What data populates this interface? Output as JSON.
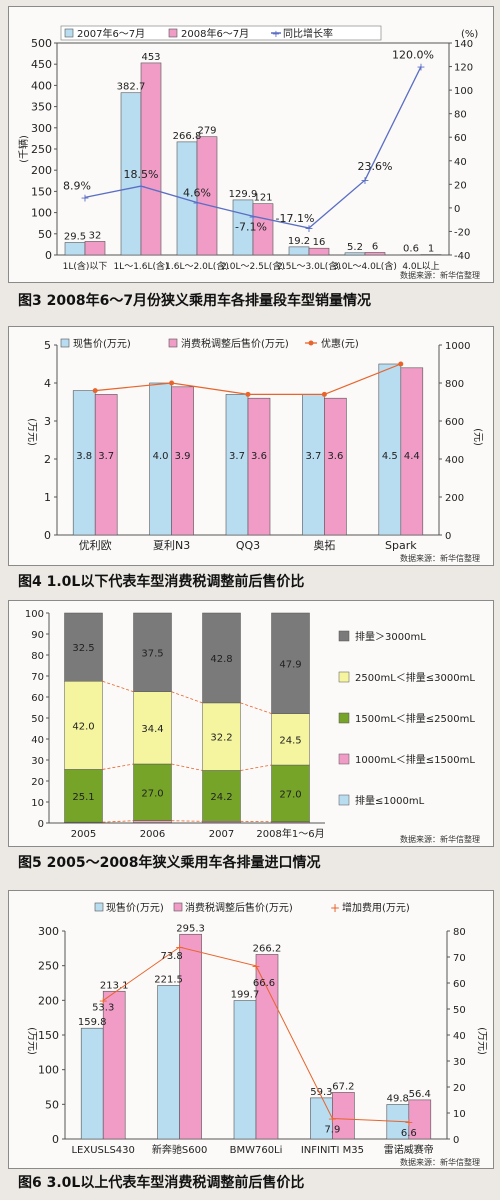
{
  "colors": {
    "blue": "#b8dcf0",
    "pink": "#f09cc6",
    "line": "#5a6ec4",
    "orange": "#e8642c",
    "dgray": "#7a7a7a",
    "yellow": "#f5f5a0",
    "green": "#76a428",
    "gblue": "#b8dcf0"
  },
  "charts": [
    {
      "caption": "图3  2008年6～7月份狭义乘用车各排量段车型销量情况",
      "source": "数据来源：新华信整理",
      "chart_data": {
        "type": "bar",
        "legend": [
          "2007年6～7月",
          "2008年6～7月",
          "同比增长率"
        ],
        "ylabel": "(千辆)",
        "y2unit": "(%)",
        "ylim": [
          0,
          500
        ],
        "y2lim": [
          -40,
          140
        ],
        "yticks": [
          "0",
          "50",
          "100",
          "150",
          "200",
          "250",
          "300",
          "350",
          "400",
          "450",
          "500"
        ],
        "y2ticks": [
          "-40",
          "-20",
          "0",
          "20",
          "40",
          "60",
          "80",
          "100",
          "120",
          "140"
        ],
        "categories": [
          "1L(含)以下",
          "1L～1.6L(含)",
          "1.6L～2.0L(含)",
          "2.0L～2.5L(含)",
          "2.5L～3.0L(含)",
          "3.0L～4.0L(含)",
          "4.0L以上"
        ],
        "series": [
          {
            "name": "2007年6～7月",
            "values": [
              29.5,
              382.7,
              266.8,
              129.9,
              19.2,
              5.2,
              0.6
            ],
            "labels": [
              "29.5",
              "382.7",
              "266.8",
              "129.9",
              "19.2",
              "5.2",
              "0.6"
            ]
          },
          {
            "name": "2008年6～7月",
            "values": [
              32,
              453,
              279,
              121,
              16,
              6,
              1
            ],
            "labels": [
              "32",
              "453",
              "279",
              "121",
              "16",
              "6",
              "1"
            ]
          },
          {
            "name": "同比增长率",
            "values": [
              8.9,
              18.5,
              4.6,
              -7.1,
              -17.1,
              23.6,
              120.0
            ],
            "labels": [
              "8.9%",
              "18.5%",
              "4.6%",
              "-7.1%",
              "-17.1%",
              "23.6%",
              "120.0%"
            ]
          }
        ]
      }
    },
    {
      "caption": "图4  1.0L以下代表车型消费税调整前后售价比",
      "source": "数据来源：新华信整理",
      "chart_data": {
        "type": "bar",
        "legend": [
          "现售价(万元)",
          "消费税调整后售价(万元)",
          "优惠(元)"
        ],
        "ylabel": "(万元)",
        "y2label": "(元)",
        "ylim": [
          0,
          5
        ],
        "y2lim": [
          0,
          1000
        ],
        "yticks": [
          "0",
          "1",
          "2",
          "3",
          "4",
          "5"
        ],
        "y2ticks": [
          "0",
          "200",
          "400",
          "600",
          "800",
          "1000"
        ],
        "categories": [
          "优利欧",
          "夏利N3",
          "QQ3",
          "奥拓",
          "Spark"
        ],
        "series": [
          {
            "name": "现售价(万元)",
            "values": [
              3.8,
              4.0,
              3.7,
              3.7,
              4.5
            ],
            "labels": [
              "3.8",
              "4.0",
              "3.7",
              "3.7",
              "4.5"
            ]
          },
          {
            "name": "消费税调整后售价(万元)",
            "values": [
              3.7,
              3.9,
              3.6,
              3.6,
              4.4
            ],
            "labels": [
              "3.7",
              "3.9",
              "3.6",
              "3.6",
              "4.4"
            ]
          },
          {
            "name": "优惠(元)",
            "values": [
              760,
              800,
              740,
              740,
              900
            ]
          }
        ]
      }
    },
    {
      "caption": "图5  2005～2008年狭义乘用车各排量进口情况",
      "source": "数据来源：新华信整理",
      "chart_data": {
        "type": "bar",
        "stacked": true,
        "ylim": [
          0,
          100
        ],
        "yticks": [
          "0",
          "10",
          "20",
          "30",
          "40",
          "50",
          "60",
          "70",
          "80",
          "90",
          "100"
        ],
        "categories": [
          "2005",
          "2006",
          "2007",
          "2008年1～6月"
        ],
        "series": [
          {
            "name": "排量≤1000mL",
            "values": [
              0.2,
              0.2,
              0.2,
              0.2
            ]
          },
          {
            "name": "1000mL＜排量≤1500mL",
            "values": [
              0.2,
              0.9,
              0.6,
              0.4
            ]
          },
          {
            "name": "1500mL＜排量≤2500mL",
            "values": [
              25.1,
              27.0,
              24.2,
              27.0
            ],
            "labels": [
              "25.1",
              "27.0",
              "24.2",
              "27.0"
            ]
          },
          {
            "name": "2500mL＜排量≤3000mL",
            "values": [
              42.0,
              34.4,
              32.2,
              24.5
            ],
            "labels": [
              "42.0",
              "34.4",
              "32.2",
              "24.5"
            ]
          },
          {
            "name": "排量＞3000mL",
            "values": [
              32.5,
              37.5,
              42.8,
              47.9
            ],
            "labels": [
              "32.5",
              "37.5",
              "42.8",
              "47.9"
            ]
          }
        ],
        "legend_order": [
          "排量＞3000mL",
          "2500mL＜排量≤3000mL",
          "1500mL＜排量≤2500mL",
          "1000mL＜排量≤1500mL",
          "排量≤1000mL"
        ]
      }
    },
    {
      "caption": "图6  3.0L以上代表车型消费税调整前后售价比",
      "source": "数据来源：新华信整理",
      "chart_data": {
        "type": "bar",
        "legend": [
          "现售价(万元)",
          "消费税调整后售价(万元)",
          "增加费用(万元)"
        ],
        "ylabel": "(万元)",
        "y2label": "(万元)",
        "ylim": [
          0,
          300
        ],
        "y2lim": [
          0,
          80
        ],
        "yticks": [
          "0",
          "50",
          "100",
          "150",
          "200",
          "250",
          "300"
        ],
        "y2ticks": [
          "0",
          "10",
          "20",
          "30",
          "40",
          "50",
          "60",
          "70",
          "80"
        ],
        "categories": [
          "LEXUSLS430",
          "新奔驰S600",
          "BMW760Li",
          "INFINITI M35",
          "雷诺威赛帝"
        ],
        "series": [
          {
            "name": "现售价(万元)",
            "values": [
              159.8,
              221.5,
              199.7,
              59.3,
              49.8
            ],
            "labels": [
              "159.8",
              "221.5",
              "199.7",
              "59.3",
              "49.8"
            ]
          },
          {
            "name": "消费税调整后售价(万元)",
            "values": [
              213.1,
              295.3,
              266.2,
              67.2,
              56.4
            ],
            "labels": [
              "213.1",
              "295.3",
              "266.2",
              "67.2",
              "56.4"
            ]
          },
          {
            "name": "增加费用(万元)",
            "values": [
              53.3,
              73.8,
              66.6,
              7.9,
              6.6
            ],
            "labels": [
              "53.3",
              "73.8",
              "66.6",
              "7.9",
              "6.6"
            ]
          }
        ]
      }
    }
  ]
}
